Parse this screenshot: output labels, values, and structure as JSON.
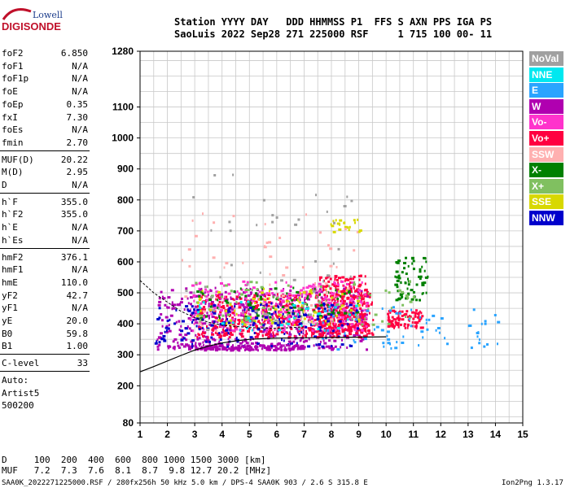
{
  "logo": {
    "line1": "Lowell",
    "line2": "DIGISONDE"
  },
  "header": {
    "labels_line": "Station YYYY DAY   DDD HHMMSS P1  FFS S AXN PPS IGA PS",
    "values_line": "SaoLuis 2022 Sep28 271 225000 RSF     1 715 100 00- 11"
  },
  "params": {
    "group1": [
      {
        "label": "foF2",
        "value": "6.850"
      },
      {
        "label": "foF1",
        "value": "N/A"
      },
      {
        "label": "foF1p",
        "value": "N/A"
      },
      {
        "label": "foE",
        "value": "N/A"
      },
      {
        "label": "foEp",
        "value": "0.35"
      },
      {
        "label": "fxI",
        "value": "7.30"
      },
      {
        "label": "foEs",
        "value": "N/A"
      },
      {
        "label": "fmin",
        "value": "2.70"
      }
    ],
    "group2": [
      {
        "label": "MUF(D)",
        "value": "20.22"
      },
      {
        "label": "M(D)",
        "value": "2.95"
      },
      {
        "label": "D",
        "value": "N/A"
      }
    ],
    "group3": [
      {
        "label": "h`F",
        "value": "355.0"
      },
      {
        "label": "h`F2",
        "value": "355.0"
      },
      {
        "label": "h`E",
        "value": "N/A"
      },
      {
        "label": "h`Es",
        "value": "N/A"
      }
    ],
    "group4": [
      {
        "label": "hmF2",
        "value": "376.1"
      },
      {
        "label": "hmF1",
        "value": "N/A"
      },
      {
        "label": "hmE",
        "value": "110.0"
      },
      {
        "label": "yF2",
        "value": "42.7"
      },
      {
        "label": "yF1",
        "value": "N/A"
      },
      {
        "label": "yE",
        "value": "20.0"
      },
      {
        "label": "B0",
        "value": "59.8"
      },
      {
        "label": "B1",
        "value": "1.00"
      }
    ],
    "group5": [
      {
        "label": "C-level",
        "value": "33"
      }
    ],
    "group6": [
      "Auto:",
      "Artist5",
      "500200"
    ]
  },
  "legend": [
    {
      "label": "NoVal",
      "bg": "#a0a0a0",
      "fg": "#ffffff"
    },
    {
      "label": "NNE",
      "bg": "#00e8f0",
      "fg": "#ffffff"
    },
    {
      "label": "E",
      "bg": "#2aa4ff",
      "fg": "#ffffff"
    },
    {
      "label": "W",
      "bg": "#b000b0",
      "fg": "#ffffff"
    },
    {
      "label": "Vo-",
      "bg": "#ff33cc",
      "fg": "#ffffff"
    },
    {
      "label": "Vo+",
      "bg": "#ff0040",
      "fg": "#ffffff"
    },
    {
      "label": "SSW",
      "bg": "#ffb0b0",
      "fg": "#ffffff"
    },
    {
      "label": "X-",
      "bg": "#008000",
      "fg": "#ffffff"
    },
    {
      "label": "X+",
      "bg": "#80c060",
      "fg": "#ffffff"
    },
    {
      "label": "SSE",
      "bg": "#d8d800",
      "fg": "#ffffff"
    },
    {
      "label": "NNW",
      "bg": "#0000cc",
      "fg": "#ffffff"
    }
  ],
  "chart_data": {
    "type": "scatter",
    "xlim": [
      1,
      15
    ],
    "ylim": [
      80,
      1280
    ],
    "xticks": [
      "1",
      "2",
      "3",
      "4",
      "5",
      "6",
      "7",
      "8",
      "9",
      "10",
      "11",
      "12",
      "13",
      "14",
      "15"
    ],
    "yticks": [
      "80",
      "200",
      "300",
      "400",
      "500",
      "600",
      "700",
      "800",
      "900",
      "1000",
      "1100",
      "1280"
    ],
    "grid": true,
    "profile_curve": [
      [
        1.0,
        245
      ],
      [
        1.5,
        262
      ],
      [
        2.0,
        280
      ],
      [
        2.5,
        298
      ],
      [
        3.0,
        315
      ],
      [
        3.5,
        328
      ],
      [
        4.0,
        338
      ],
      [
        4.5,
        345
      ],
      [
        5.0,
        350
      ],
      [
        5.5,
        352
      ],
      [
        6.0,
        354
      ],
      [
        7.0,
        355
      ],
      [
        8.0,
        356
      ],
      [
        9.0,
        357
      ],
      [
        10.0,
        358
      ]
    ],
    "echo_clusters": [
      {
        "name": "W",
        "color": "#b000b0",
        "fmin": 1.6,
        "fmax": 9.3,
        "hmin": 320,
        "hmax": 520,
        "count": 520
      },
      {
        "name": "Vo+",
        "color": "#ff0040",
        "fmin": 3.0,
        "fmax": 9.5,
        "hmin": 360,
        "hmax": 500,
        "count": 420
      },
      {
        "name": "Vo+b",
        "color": "#ff0040",
        "fmin": 7.5,
        "fmax": 9.3,
        "hmin": 380,
        "hmax": 560,
        "count": 260
      },
      {
        "name": "Vo+c",
        "color": "#ff0040",
        "fmin": 10.0,
        "fmax": 11.3,
        "hmin": 390,
        "hmax": 450,
        "count": 90
      },
      {
        "name": "Vo-",
        "color": "#ff33cc",
        "fmin": 2.8,
        "fmax": 9.3,
        "hmin": 380,
        "hmax": 540,
        "count": 280
      },
      {
        "name": "X-",
        "color": "#008000",
        "fmin": 10.3,
        "fmax": 11.5,
        "hmin": 480,
        "hmax": 620,
        "count": 70
      },
      {
        "name": "Xm",
        "color": "#008000",
        "fmin": 3.0,
        "fmax": 9.0,
        "hmin": 420,
        "hmax": 520,
        "count": 90
      },
      {
        "name": "X+",
        "color": "#80c060",
        "fmin": 3.0,
        "fmax": 11.0,
        "hmin": 400,
        "hmax": 540,
        "count": 90
      },
      {
        "name": "SSE",
        "color": "#d8d800",
        "fmin": 3.0,
        "fmax": 9.0,
        "hmin": 400,
        "hmax": 520,
        "count": 80
      },
      {
        "name": "SSEh",
        "color": "#d8d800",
        "fmin": 7.9,
        "fmax": 9.1,
        "hmin": 700,
        "hmax": 740,
        "count": 20
      },
      {
        "name": "NNW",
        "color": "#0000cc",
        "fmin": 1.5,
        "fmax": 9.0,
        "hmin": 330,
        "hmax": 470,
        "count": 160
      },
      {
        "name": "E",
        "color": "#2aa4ff",
        "fmin": 7.5,
        "fmax": 14.2,
        "hmin": 320,
        "hmax": 460,
        "count": 70
      },
      {
        "name": "NNE",
        "color": "#00e8f0",
        "fmin": 3.0,
        "fmax": 9.0,
        "hmin": 380,
        "hmax": 480,
        "count": 40
      },
      {
        "name": "SSW",
        "color": "#ffb0b0",
        "fmin": 2.5,
        "fmax": 9.0,
        "hmin": 380,
        "hmax": 760,
        "count": 60
      },
      {
        "name": "NoVal",
        "color": "#a0a0a0",
        "fmin": 2.0,
        "fmax": 9.0,
        "hmin": 380,
        "hmax": 900,
        "count": 50
      },
      {
        "name": "Wlow",
        "color": "#b000b0",
        "fmin": 3.0,
        "fmax": 7.0,
        "hmin": 318,
        "hmax": 335,
        "count": 150
      }
    ]
  },
  "footer": {
    "d_line": "D     100  200  400  600  800 1000 1500 3000 [km]",
    "muf_line": "MUF   7.2  7.3  7.6  8.1  8.7  9.8 12.7 20.2 [MHz]",
    "file_line": "SAA0K_2022271225000.RSF / 280fx256h 50 kHz 5.0 km / DPS-4 SAA0K 903 / 2.6 S 315.8 E",
    "version": "Ion2Png 1.3.17"
  }
}
